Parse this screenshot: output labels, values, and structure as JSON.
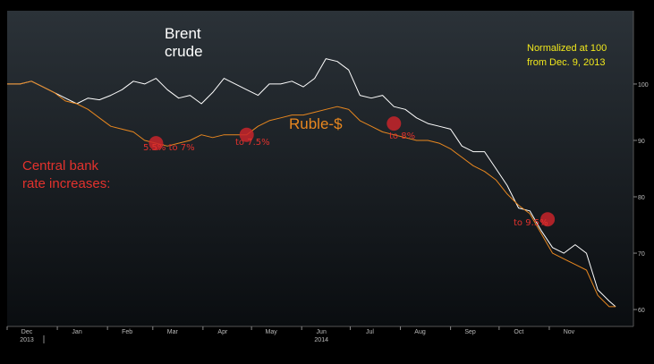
{
  "chart_data": {
    "type": "line",
    "xlim": [
      "2013-12-01",
      "2014-12-23"
    ],
    "ylim": [
      57,
      113
    ],
    "yticks": [
      100,
      90,
      80,
      70,
      60
    ],
    "x_month_labels": [
      "Dec",
      "Jan",
      "Feb",
      "Mar",
      "Apr",
      "May",
      "Jun",
      "Jul",
      "Aug",
      "Sep",
      "Oct",
      "Nov"
    ],
    "x_month_dates": [
      "2013-12-01",
      "2014-01-01",
      "2014-02-01",
      "2014-03-01",
      "2014-04-01",
      "2014-05-01",
      "2014-06-01",
      "2014-07-01",
      "2014-08-01",
      "2014-09-01",
      "2014-10-01",
      "2014-11-01"
    ],
    "x_year_labels": [
      {
        "label": "2013",
        "date": "2013-12-01"
      },
      {
        "label": "2014",
        "date": "2014-06-01"
      }
    ],
    "series": [
      {
        "name": "Brent crude",
        "color": "#ffffff",
        "points": [
          [
            "2013-12-01",
            100
          ],
          [
            "2013-12-09",
            100
          ],
          [
            "2013-12-16",
            100.5
          ],
          [
            "2013-12-23",
            99.5
          ],
          [
            "2013-12-30",
            98.5
          ],
          [
            "2014-01-06",
            97.5
          ],
          [
            "2014-01-13",
            96.5
          ],
          [
            "2014-01-20",
            97.5
          ],
          [
            "2014-01-27",
            97.2
          ],
          [
            "2014-02-03",
            98
          ],
          [
            "2014-02-10",
            99
          ],
          [
            "2014-02-17",
            100.5
          ],
          [
            "2014-02-24",
            100
          ],
          [
            "2014-03-03",
            101
          ],
          [
            "2014-03-10",
            99
          ],
          [
            "2014-03-17",
            97.5
          ],
          [
            "2014-03-24",
            98
          ],
          [
            "2014-03-31",
            96.5
          ],
          [
            "2014-04-07",
            98.5
          ],
          [
            "2014-04-14",
            101
          ],
          [
            "2014-04-21",
            100
          ],
          [
            "2014-04-28",
            99
          ],
          [
            "2014-05-05",
            98
          ],
          [
            "2014-05-12",
            100
          ],
          [
            "2014-05-19",
            100
          ],
          [
            "2014-05-26",
            100.5
          ],
          [
            "2014-06-02",
            99.5
          ],
          [
            "2014-06-09",
            101
          ],
          [
            "2014-06-16",
            104.5
          ],
          [
            "2014-06-23",
            104
          ],
          [
            "2014-06-30",
            102.5
          ],
          [
            "2014-07-07",
            98
          ],
          [
            "2014-07-14",
            97.5
          ],
          [
            "2014-07-21",
            98
          ],
          [
            "2014-07-28",
            96
          ],
          [
            "2014-08-04",
            95.5
          ],
          [
            "2014-08-11",
            94
          ],
          [
            "2014-08-18",
            93
          ],
          [
            "2014-08-25",
            92.5
          ],
          [
            "2014-09-01",
            92
          ],
          [
            "2014-09-08",
            89
          ],
          [
            "2014-09-15",
            88
          ],
          [
            "2014-09-22",
            88
          ],
          [
            "2014-09-29",
            85
          ],
          [
            "2014-10-06",
            82
          ],
          [
            "2014-10-13",
            78
          ],
          [
            "2014-10-20",
            77.5
          ],
          [
            "2014-10-27",
            74
          ],
          [
            "2014-11-03",
            71
          ],
          [
            "2014-11-10",
            70
          ],
          [
            "2014-11-17",
            71.5
          ],
          [
            "2014-11-24",
            70
          ],
          [
            "2014-12-01",
            63.5
          ],
          [
            "2014-12-08",
            61.5
          ],
          [
            "2014-12-12",
            60.5
          ]
        ]
      },
      {
        "name": "Ruble-$",
        "color": "#e8871f",
        "points": [
          [
            "2013-12-01",
            100
          ],
          [
            "2013-12-09",
            100
          ],
          [
            "2013-12-16",
            100.5
          ],
          [
            "2013-12-23",
            99.5
          ],
          [
            "2013-12-30",
            98.5
          ],
          [
            "2014-01-06",
            97
          ],
          [
            "2014-01-13",
            96.5
          ],
          [
            "2014-01-20",
            95.5
          ],
          [
            "2014-01-27",
            94
          ],
          [
            "2014-02-03",
            92.5
          ],
          [
            "2014-02-10",
            92
          ],
          [
            "2014-02-17",
            91.5
          ],
          [
            "2014-02-24",
            90
          ],
          [
            "2014-03-03",
            89.5
          ],
          [
            "2014-03-10",
            89
          ],
          [
            "2014-03-17",
            89.5
          ],
          [
            "2014-03-24",
            90
          ],
          [
            "2014-03-31",
            91
          ],
          [
            "2014-04-07",
            90.5
          ],
          [
            "2014-04-14",
            91
          ],
          [
            "2014-04-21",
            91
          ],
          [
            "2014-04-28",
            91
          ],
          [
            "2014-05-05",
            92.5
          ],
          [
            "2014-05-12",
            93.5
          ],
          [
            "2014-05-19",
            94
          ],
          [
            "2014-05-26",
            94.5
          ],
          [
            "2014-06-02",
            94.5
          ],
          [
            "2014-06-09",
            95
          ],
          [
            "2014-06-16",
            95.5
          ],
          [
            "2014-06-23",
            96
          ],
          [
            "2014-06-30",
            95.5
          ],
          [
            "2014-07-07",
            93.5
          ],
          [
            "2014-07-14",
            92.5
          ],
          [
            "2014-07-21",
            91.5
          ],
          [
            "2014-07-28",
            91
          ],
          [
            "2014-08-04",
            90.5
          ],
          [
            "2014-08-11",
            90
          ],
          [
            "2014-08-18",
            90
          ],
          [
            "2014-08-25",
            89.5
          ],
          [
            "2014-09-01",
            88.5
          ],
          [
            "2014-09-08",
            87
          ],
          [
            "2014-09-15",
            85.5
          ],
          [
            "2014-09-22",
            84.5
          ],
          [
            "2014-09-29",
            83
          ],
          [
            "2014-10-06",
            80.5
          ],
          [
            "2014-10-13",
            78.5
          ],
          [
            "2014-10-20",
            77
          ],
          [
            "2014-10-27",
            73.5
          ],
          [
            "2014-11-03",
            70
          ],
          [
            "2014-11-10",
            69
          ],
          [
            "2014-11-17",
            68
          ],
          [
            "2014-11-24",
            67
          ],
          [
            "2014-12-01",
            62.5
          ],
          [
            "2014-12-08",
            60.5
          ],
          [
            "2014-12-12",
            60.5
          ]
        ]
      }
    ],
    "rate_increase_markers": [
      {
        "date": "2014-03-03",
        "value": 89.5
      },
      {
        "date": "2014-04-28",
        "value": 91
      },
      {
        "date": "2014-07-28",
        "value": 93
      },
      {
        "date": "2014-10-31",
        "value": 76
      }
    ],
    "annotations": [
      {
        "text": "5.5% to 7%"
      },
      {
        "text": "to 7.5%"
      },
      {
        "text": "to 8%"
      },
      {
        "text": "to 9.5%"
      }
    ],
    "labels": {
      "brent_line1": "Brent",
      "brent_line2": "crude",
      "ruble": "Ruble-$",
      "central_line1": "Central bank",
      "central_line2": "rate increases:",
      "normalized_line1": "Normalized at 100",
      "normalized_line2": "from Dec. 9, 2013"
    },
    "grid": false,
    "colors": {
      "brent": "#ffffff",
      "ruble": "#e8871f",
      "marker": "#c8242a",
      "annotation": "#e3322d",
      "note": "#f1e81c"
    }
  }
}
